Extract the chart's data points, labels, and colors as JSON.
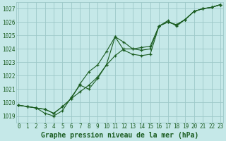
{
  "title": "Graphe pression niveau de la mer (hPa)",
  "bg_color": "#c5e8e8",
  "grid_color": "#9dc8c8",
  "line_color": "#1a5c20",
  "xlim": [
    -0.3,
    23.3
  ],
  "ylim": [
    1018.5,
    1027.5
  ],
  "yticks": [
    1019,
    1020,
    1021,
    1022,
    1023,
    1024,
    1025,
    1026,
    1027
  ],
  "xticks": [
    0,
    1,
    2,
    3,
    4,
    5,
    6,
    7,
    8,
    9,
    10,
    11,
    12,
    13,
    14,
    15,
    16,
    17,
    18,
    19,
    20,
    21,
    22,
    23
  ],
  "series1_x": [
    0,
    1,
    2,
    3,
    4,
    5,
    6,
    7,
    8,
    9,
    10,
    11,
    12,
    13,
    14,
    15,
    16,
    17,
    18,
    19,
    20,
    21,
    22,
    23
  ],
  "series1_y": [
    1019.8,
    1019.7,
    1019.6,
    1019.5,
    1019.2,
    1019.7,
    1020.3,
    1021.4,
    1022.3,
    1022.8,
    1023.8,
    1024.9,
    1024.5,
    1024.0,
    1023.9,
    1024.0,
    1025.7,
    1026.0,
    1025.8,
    1026.2,
    1026.8,
    1027.0,
    1027.1,
    1027.3
  ],
  "series2_x": [
    0,
    1,
    2,
    3,
    4,
    5,
    6,
    7,
    8,
    9,
    10,
    11,
    12,
    13,
    14,
    15,
    16,
    17,
    18,
    19,
    20,
    21,
    22,
    23
  ],
  "series2_y": [
    1019.8,
    1019.7,
    1019.6,
    1019.2,
    1019.0,
    1019.4,
    1020.4,
    1021.3,
    1021.0,
    1021.8,
    1022.8,
    1024.9,
    1023.9,
    1023.6,
    1023.5,
    1023.6,
    1025.7,
    1026.1,
    1025.7,
    1026.2,
    1026.8,
    1027.0,
    1027.1,
    1027.3
  ],
  "series3_x": [
    0,
    1,
    2,
    3,
    4,
    5,
    6,
    7,
    8,
    9,
    10,
    11,
    12,
    13,
    14,
    15,
    16,
    17,
    18,
    19,
    20,
    21,
    22,
    23
  ],
  "series3_y": [
    1019.8,
    1019.7,
    1019.6,
    1019.5,
    1019.2,
    1019.7,
    1020.3,
    1020.8,
    1021.3,
    1021.9,
    1022.8,
    1023.5,
    1024.0,
    1024.0,
    1024.1,
    1024.2,
    1025.7,
    1026.0,
    1025.8,
    1026.2,
    1026.8,
    1027.0,
    1027.1,
    1027.3
  ],
  "tick_fontsize": 5.5,
  "title_fontsize": 7.0
}
